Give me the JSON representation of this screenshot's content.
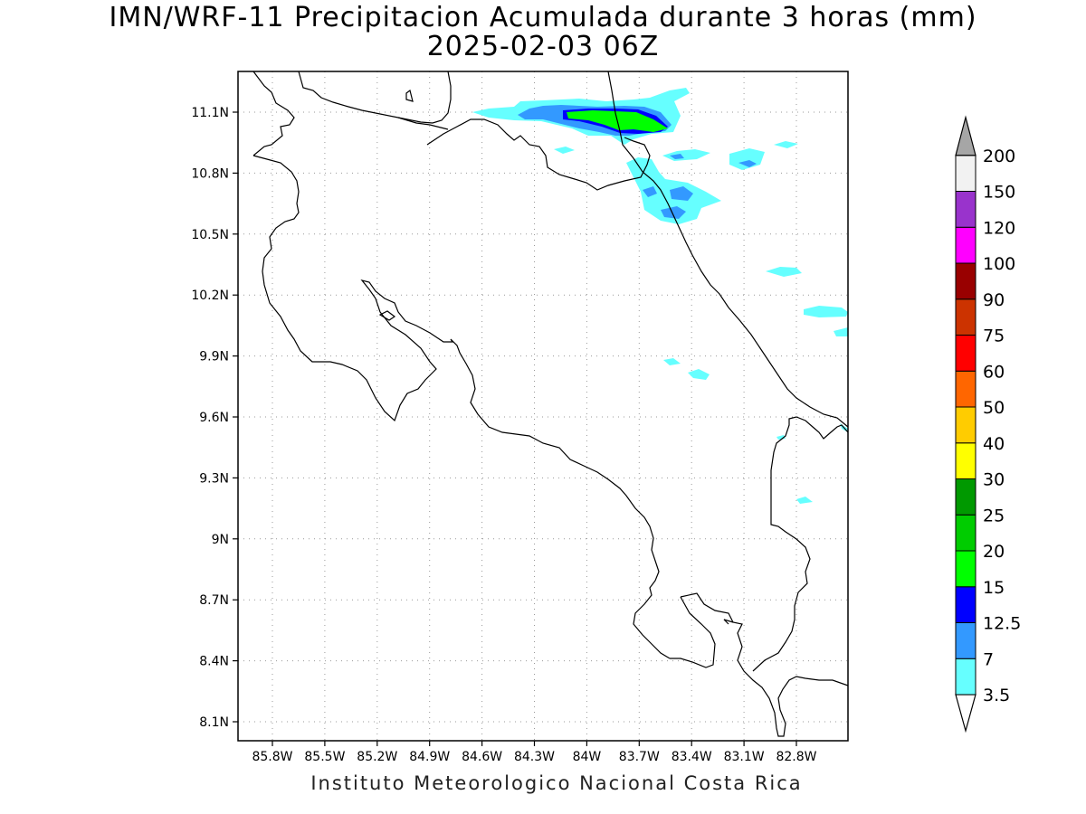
{
  "title": "IMN/WRF-11 Precipitacion Acumulada durante 3 horas (mm)",
  "subtitle": "2025-02-03 06Z",
  "footer": "Instituto Meteorologico Nacional Costa Rica",
  "axes": {
    "lat_labels": [
      "11.1N",
      "10.8N",
      "10.5N",
      "10.2N",
      "9.9N",
      "9.6N",
      "9.3N",
      "9N",
      "8.7N",
      "8.4N",
      "8.1N"
    ],
    "lon_labels": [
      "85.8W",
      "85.5W",
      "85.2W",
      "84.9W",
      "84.6W",
      "84.3W",
      "84W",
      "83.7W",
      "83.4W",
      "83.1W",
      "82.8W"
    ]
  },
  "colorbar": {
    "levels": [
      "3.5",
      "7",
      "12.5",
      "15",
      "20",
      "25",
      "30",
      "40",
      "50",
      "60",
      "75",
      "90",
      "100",
      "120",
      "150",
      "200"
    ],
    "colors": [
      "#66ffff",
      "#3399ff",
      "#0000ff",
      "#00ff00",
      "#00cc00",
      "#009900",
      "#ffff00",
      "#ffcc00",
      "#ff6600",
      "#ff0000",
      "#cc3300",
      "#990000",
      "#ff00ff",
      "#9933cc",
      "#f2f2f2",
      "#a6a6a6"
    ]
  }
}
